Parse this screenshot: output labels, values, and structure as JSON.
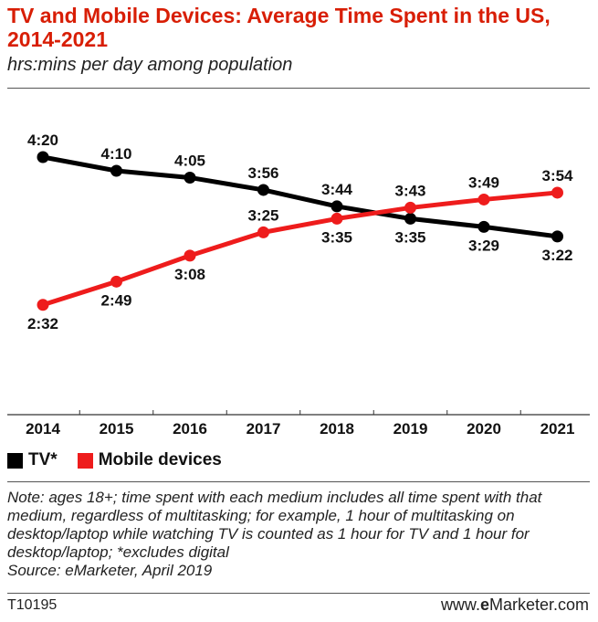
{
  "header": {
    "title": "TV and Mobile Devices: Average Time Spent in the US, 2014-2021",
    "subtitle": "hrs:mins per day among population"
  },
  "colors": {
    "tv": "#000000",
    "mobile": "#ee1c1c",
    "title": "#d81e05"
  },
  "chart_data": {
    "type": "line",
    "x": [
      "2014",
      "2015",
      "2016",
      "2017",
      "2018",
      "2019",
      "2020",
      "2021"
    ],
    "series": [
      {
        "name": "TV*",
        "color": "#000000",
        "values": [
          260,
          250,
          245,
          236,
          224,
          215,
          209,
          202
        ],
        "labels": [
          "4:20",
          "4:10",
          "4:05",
          "3:56",
          "3:44",
          "3:35",
          "3:29",
          "3:22"
        ]
      },
      {
        "name": "Mobile devices",
        "color": "#ee1c1c",
        "values": [
          152,
          169,
          188,
          205,
          215,
          223,
          229,
          234
        ],
        "labels": [
          "2:32",
          "2:49",
          "3:08",
          "3:25",
          "3:35",
          "3:43",
          "3:49",
          "3:54"
        ]
      }
    ],
    "ylabel": "hrs:mins per day",
    "grid": false,
    "legend": "bottom-left"
  },
  "legend": {
    "tv": "TV*",
    "mobile": "Mobile devices"
  },
  "note": {
    "line1": "Note: ages 18+; time spent with each medium includes all time spent with that medium, regardless of multitasking; for example, 1 hour of multitasking on desktop/laptop while watching TV is counted as 1 hour for TV and 1 hour for desktop/laptop; *excludes digital",
    "source": "Source: eMarketer, April 2019"
  },
  "footer": {
    "id": "T10195",
    "brand_prefix": "www.",
    "brand_bold": "e",
    "brand_rest": "Marketer.com"
  }
}
